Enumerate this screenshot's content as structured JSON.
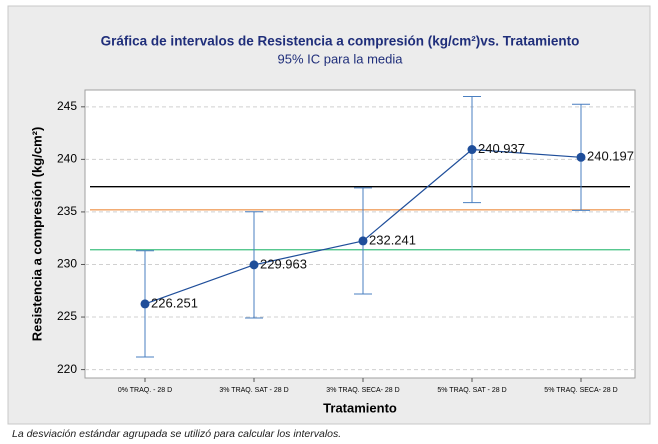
{
  "chart_data": {
    "type": "interval",
    "title": "Gráfica de intervalos de Resistencia a compresión (kg/cm²)vs. Tratamiento",
    "subtitle": "95% IC para la media",
    "x_label": "Tratamiento",
    "y_label": "Resistencia a compresión (kg/cm²)",
    "footnote": "La desviación estándar agrupada se utilizó para calcular los intervalos.",
    "categories": [
      "0% TRAQ. - 28 D",
      "3% TRAQ. SAT - 28 D",
      "3% TRAQ. SECA- 28 D",
      "5% TRAQ. SAT - 28 D",
      "5% TRAQ. SECA- 28 D"
    ],
    "values": [
      226.251,
      229.963,
      232.241,
      240.937,
      240.197
    ],
    "errors": [
      5.05,
      5.05,
      5.05,
      5.05,
      5.05
    ],
    "color": "#1f4e9a",
    "error_color": "#4a7fc0",
    "reference_lines": [
      {
        "value": 237.4,
        "color": "#000000"
      },
      {
        "value": 235.2,
        "color": "#f0a060"
      },
      {
        "value": 231.4,
        "color": "#40c080"
      }
    ],
    "ylim": [
      219.2,
      246.6
    ],
    "yticks": [
      220,
      225,
      230,
      235,
      240,
      245
    ],
    "grid": true
  }
}
